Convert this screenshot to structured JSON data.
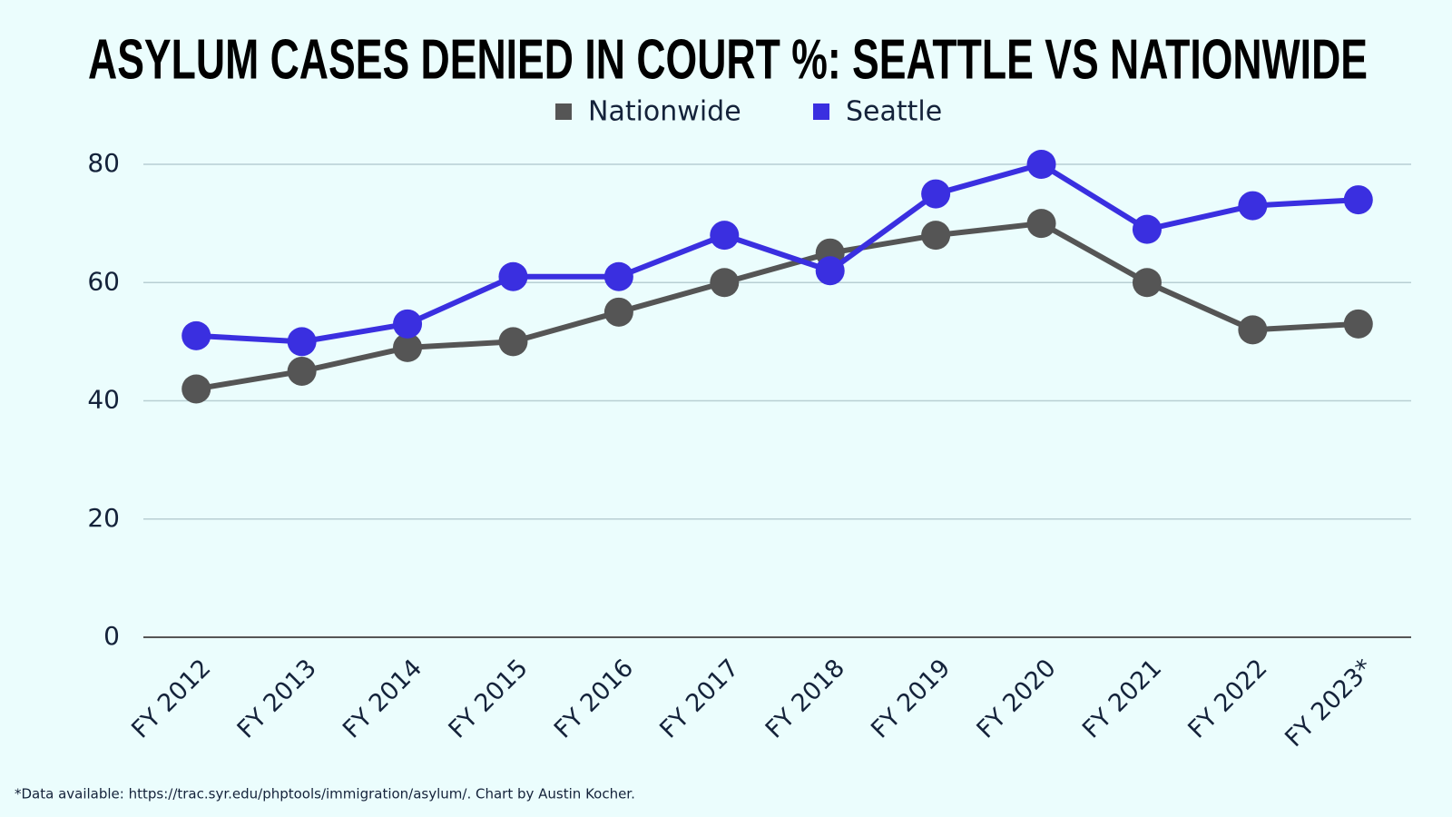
{
  "chart_data": {
    "type": "line",
    "title": "ASYLUM CASES DENIED IN COURT %: SEATTLE VS NATIONWIDE",
    "categories": [
      "FY 2012",
      "FY 2013",
      "FY 2014",
      "FY 2015",
      "FY 2016",
      "FY 2017",
      "FY 2018",
      "FY 2019",
      "FY 2020",
      "FY 2021",
      "FY 2022",
      "FY 2023*"
    ],
    "series": [
      {
        "name": "Nationwide",
        "color": "#555555",
        "values": [
          42,
          45,
          49,
          50,
          55,
          60,
          65,
          68,
          70,
          60,
          52,
          53
        ]
      },
      {
        "name": "Seattle",
        "color": "#3a2fe0",
        "values": [
          51,
          50,
          53,
          61,
          61,
          68,
          62,
          75,
          80,
          69,
          73,
          74
        ]
      }
    ],
    "ylim": [
      0,
      80
    ],
    "yticks": [
      0,
      20,
      40,
      60,
      80
    ],
    "grid": true,
    "footnote": "*Data available: https://trac.syr.edu/phptools/immigration/asylum/. Chart by Austin Kocher."
  }
}
